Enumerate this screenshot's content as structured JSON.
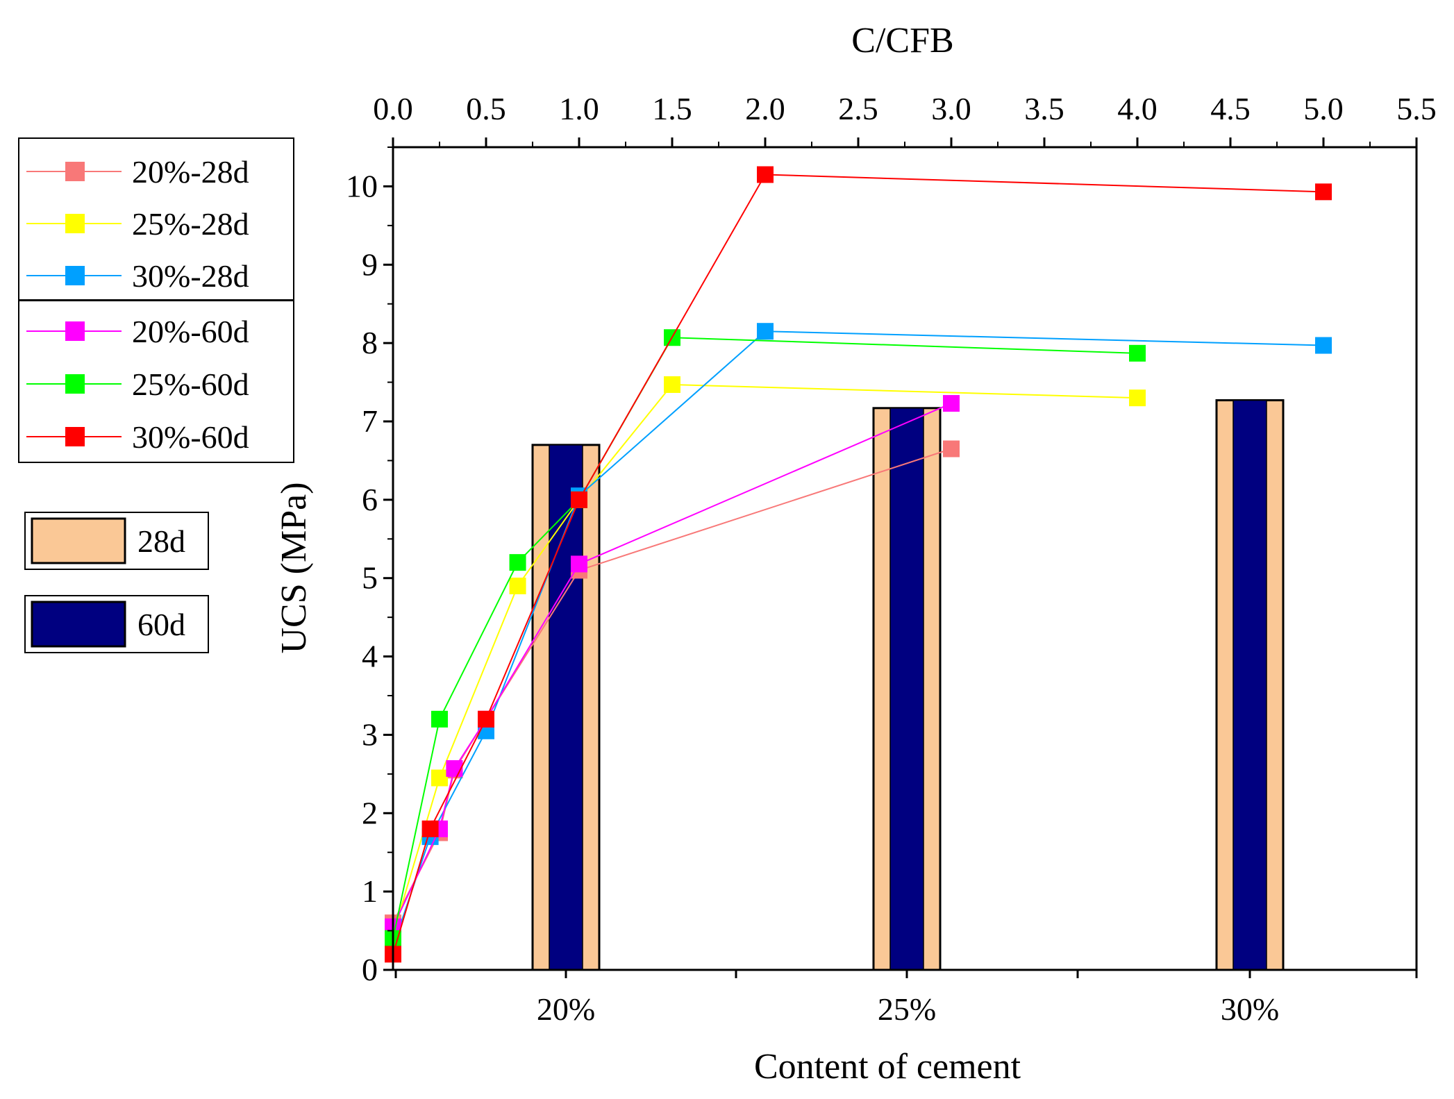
{
  "chart_data": {
    "type": "bar+line",
    "top_axis": {
      "label": "C/CFB",
      "range": [
        0,
        5.5
      ],
      "ticks": [
        "0.0",
        "0.5",
        "1.0",
        "1.5",
        "2.0",
        "2.5",
        "3.0",
        "3.5",
        "4.0",
        "4.5",
        "5.0",
        "5.5"
      ]
    },
    "bottom_axis": {
      "label": "Content of cement",
      "categories": [
        "20%",
        "25%",
        "30%"
      ]
    },
    "y_axis": {
      "label": "UCS (MPa)",
      "range": [
        0,
        10.5
      ],
      "ticks": [
        "0",
        "1",
        "2",
        "3",
        "4",
        "5",
        "6",
        "7",
        "8",
        "9",
        "10"
      ]
    },
    "bars": {
      "series": [
        {
          "name": "28d",
          "color": "#FAC896",
          "values": [
            6.7,
            7.17,
            7.27
          ]
        },
        {
          "name": "60d",
          "color": "#000080",
          "values": [
            6.7,
            7.17,
            7.27
          ]
        }
      ]
    },
    "lines": [
      {
        "name": "20%-28d",
        "color": "#F87878",
        "x": [
          0,
          0.25,
          0.33,
          0.5,
          1.0,
          3.0
        ],
        "y": [
          0.6,
          1.75,
          2.55,
          3.2,
          5.1,
          6.65
        ]
      },
      {
        "name": "25%-28d",
        "color": "#FFFF00",
        "x": [
          0,
          0.25,
          0.67,
          1.0,
          1.5,
          4.0
        ],
        "y": [
          0.45,
          2.45,
          4.9,
          6.0,
          7.47,
          7.3
        ]
      },
      {
        "name": "30%-28d",
        "color": "#00A0FF",
        "x": [
          0,
          0.2,
          0.5,
          1.0,
          2.0,
          5.0
        ],
        "y": [
          0.3,
          1.7,
          3.05,
          6.05,
          8.15,
          7.97
        ]
      },
      {
        "name": "20%-60d",
        "color": "#FF00FF",
        "x": [
          0,
          0.25,
          0.33,
          0.5,
          1.0,
          3.0
        ],
        "y": [
          0.55,
          1.8,
          2.57,
          3.2,
          5.18,
          7.23
        ]
      },
      {
        "name": "25%-60d",
        "color": "#00FF00",
        "x": [
          0,
          0.25,
          0.67,
          1.0,
          1.5,
          4.0
        ],
        "y": [
          0.4,
          3.2,
          5.2,
          6.0,
          8.07,
          7.87
        ]
      },
      {
        "name": "30%-60d",
        "color": "#FF0000",
        "x": [
          0,
          0.2,
          0.5,
          1.0,
          2.0,
          5.0
        ],
        "y": [
          0.2,
          1.8,
          3.2,
          6.0,
          10.15,
          9.93
        ]
      }
    ]
  }
}
